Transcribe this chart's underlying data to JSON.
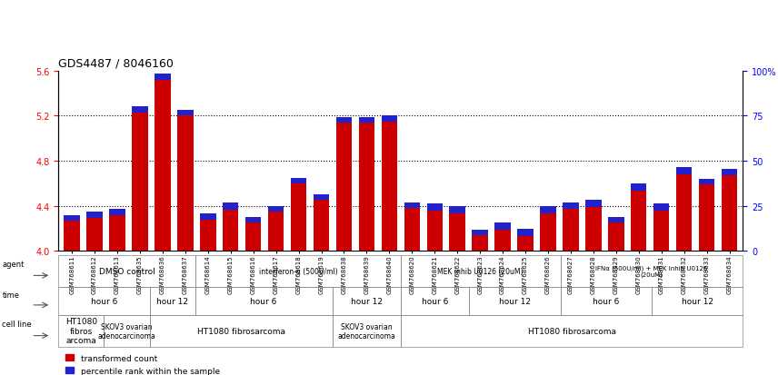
{
  "title": "GDS4487 / 8046160",
  "samples": [
    "GSM768611",
    "GSM768612",
    "GSM768613",
    "GSM768635",
    "GSM768636",
    "GSM768637",
    "GSM768614",
    "GSM768615",
    "GSM768616",
    "GSM768617",
    "GSM768618",
    "GSM768619",
    "GSM768638",
    "GSM768639",
    "GSM768640",
    "GSM768620",
    "GSM768621",
    "GSM768622",
    "GSM768623",
    "GSM768624",
    "GSM768625",
    "GSM768626",
    "GSM768627",
    "GSM768628",
    "GSM768629",
    "GSM768630",
    "GSM768631",
    "GSM768632",
    "GSM768633",
    "GSM768634"
  ],
  "red_values": [
    4.32,
    4.35,
    4.37,
    5.28,
    5.57,
    5.25,
    4.33,
    4.43,
    4.3,
    4.4,
    4.65,
    4.5,
    5.19,
    5.19,
    5.2,
    4.43,
    4.42,
    4.4,
    4.19,
    4.25,
    4.2,
    4.4,
    4.43,
    4.45,
    4.3,
    4.6,
    4.42,
    4.74,
    4.64,
    4.73
  ],
  "blue_heights": [
    0.05,
    0.055,
    0.05,
    0.05,
    0.05,
    0.05,
    0.05,
    0.065,
    0.05,
    0.05,
    0.05,
    0.05,
    0.05,
    0.05,
    0.05,
    0.05,
    0.065,
    0.065,
    0.05,
    0.065,
    0.065,
    0.065,
    0.06,
    0.06,
    0.05,
    0.065,
    0.06,
    0.06,
    0.05,
    0.055
  ],
  "ylim_left": [
    4.0,
    5.6
  ],
  "ylim_right": [
    0,
    100
  ],
  "yticks_left": [
    4.0,
    4.4,
    4.8,
    5.2,
    5.6
  ],
  "yticks_right": [
    0,
    25,
    50,
    75,
    100
  ],
  "hlines": [
    4.4,
    4.8,
    5.2
  ],
  "bar_color": "#cc0000",
  "blue_color": "#2222cc",
  "agent_groups": [
    {
      "text": "DMSO control",
      "start": 0,
      "end": 6,
      "color": "#ccffcc"
    },
    {
      "text": "interferon-α (500U/ml)",
      "start": 6,
      "end": 15,
      "color": "#aaffaa"
    },
    {
      "text": "MEK inhib U0126 (20uM)",
      "start": 15,
      "end": 22,
      "color": "#ffffaa"
    },
    {
      "text": "IFNα (500U/ml) + MEK inhib U0126\n(20uM)",
      "start": 22,
      "end": 30,
      "color": "#aaffaa"
    }
  ],
  "time_groups": [
    {
      "text": "hour 6",
      "start": 0,
      "end": 4,
      "color": "#ccccff"
    },
    {
      "text": "hour 12",
      "start": 4,
      "end": 6,
      "color": "#9999ee"
    },
    {
      "text": "hour 6",
      "start": 6,
      "end": 12,
      "color": "#ccccff"
    },
    {
      "text": "hour 12",
      "start": 12,
      "end": 15,
      "color": "#9999ee"
    },
    {
      "text": "hour 6",
      "start": 15,
      "end": 18,
      "color": "#ccccff"
    },
    {
      "text": "hour 12",
      "start": 18,
      "end": 22,
      "color": "#9999ee"
    },
    {
      "text": "hour 6",
      "start": 22,
      "end": 26,
      "color": "#ccccff"
    },
    {
      "text": "hour 12",
      "start": 26,
      "end": 30,
      "color": "#9999ee"
    }
  ],
  "cell_groups": [
    {
      "text": "HT1080\nfibros\narcoma",
      "start": 0,
      "end": 2,
      "color": "#ffcccc"
    },
    {
      "text": "SKOV3 ovarian\nadenocarcinoma",
      "start": 2,
      "end": 4,
      "color": "#ffd8cc"
    },
    {
      "text": "HT1080 fibrosarcoma",
      "start": 4,
      "end": 12,
      "color": "#ffcccc"
    },
    {
      "text": "SKOV3 ovarian\nadenocarcinoma",
      "start": 12,
      "end": 15,
      "color": "#ffd8cc"
    },
    {
      "text": "HT1080 fibrosarcoma",
      "start": 15,
      "end": 30,
      "color": "#ffcccc"
    }
  ]
}
